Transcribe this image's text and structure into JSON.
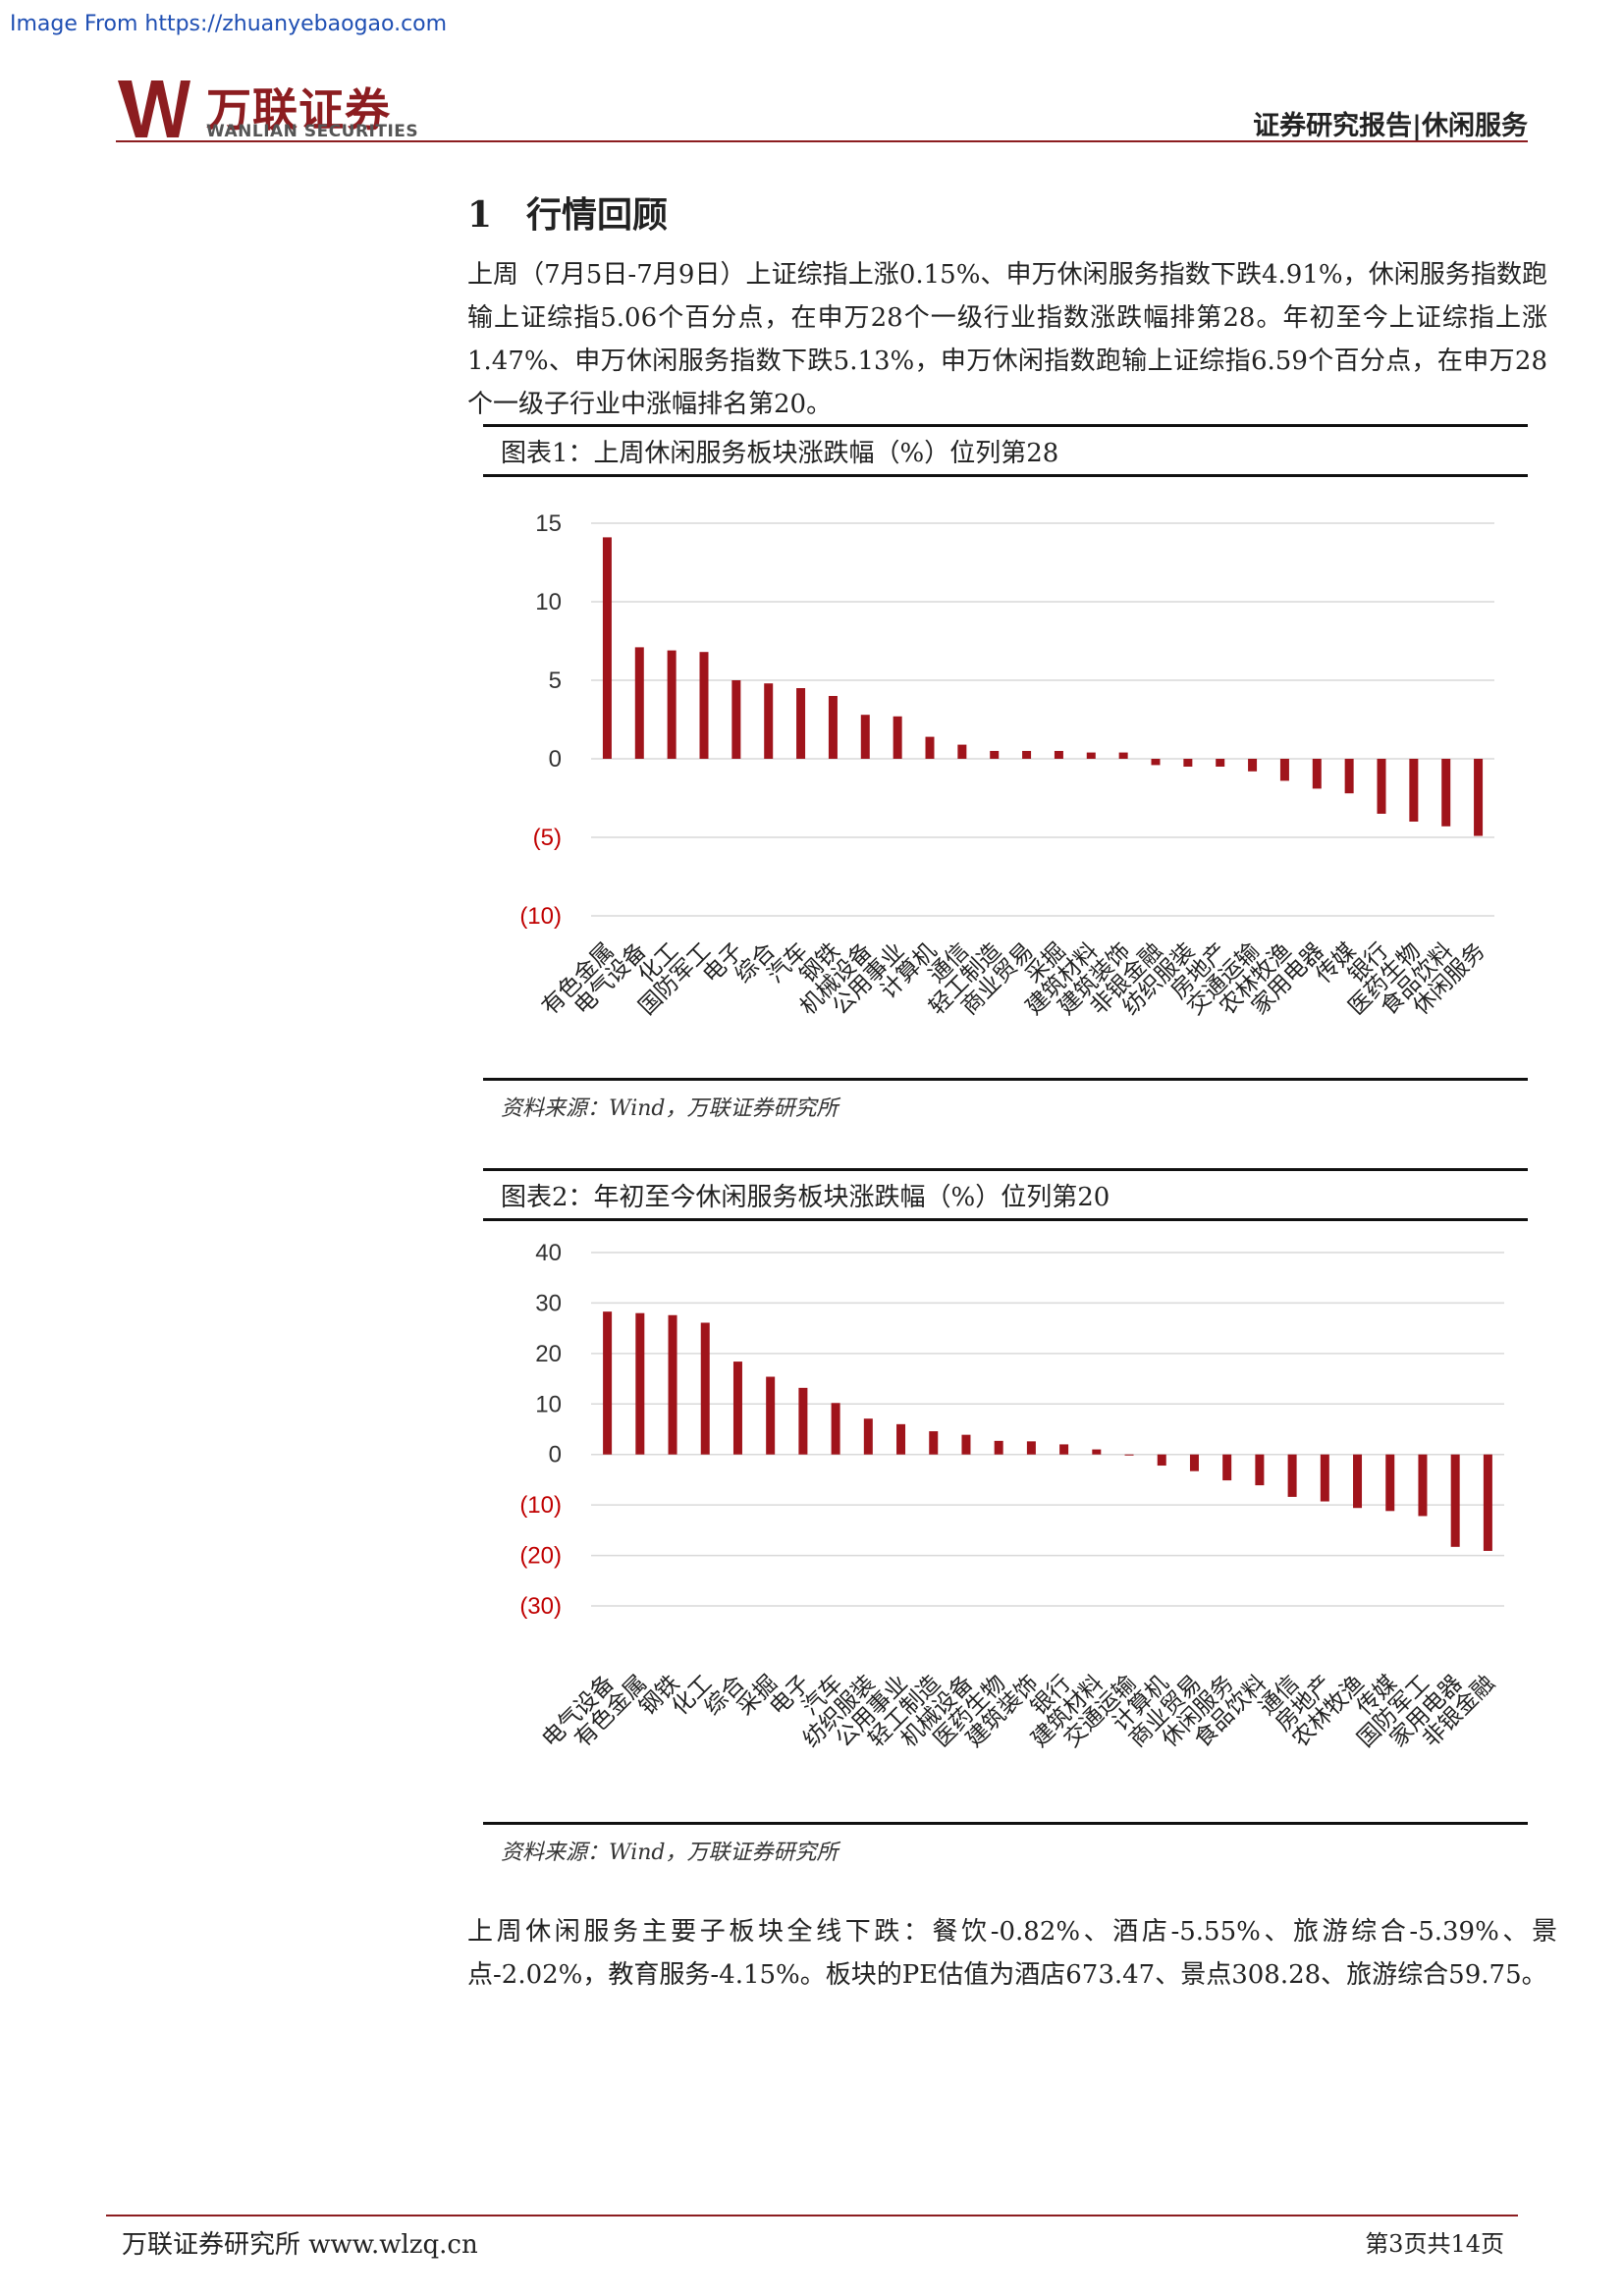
{
  "source_url": "Image From https://zhuanyebaogao.com",
  "header": {
    "logo_cn": "万联证券",
    "logo_en": "WANLIAN SECURITIES",
    "right_title": "证券研究报告|休闲服务"
  },
  "section": {
    "number": "1",
    "title": "行情回顾"
  },
  "paragraph_1": "上周（7月5日-7月9日）上证综指上涨0.15%、申万休闲服务指数下跌4.91%，休闲服务指数跑输上证综指5.06个百分点，在申万28个一级行业指数涨跌幅排第28。年初至今上证综指上涨1.47%、申万休闲服务指数下跌5.13%，申万休闲指数跑输上证综指6.59个百分点，在申万28个一级子行业中涨幅排名第20。",
  "figure_1": {
    "title": "图表1：上周休闲服务板块涨跌幅（%）位列第28",
    "source": "资料来源：Wind，万联证券研究所"
  },
  "figure_2": {
    "title": "图表2：年初至今休闲服务板块涨跌幅（%）位列第20",
    "source": "资料来源：Wind，万联证券研究所"
  },
  "paragraph_2": "上周休闲服务主要子板块全线下跌：餐饮-0.82%、酒店-5.55%、旅游综合-5.39%、景点-2.02%，教育服务-4.15%。板块的PE估值为酒店673.47、景点308.28、旅游综合59.75。",
  "footer": {
    "left": "万联证券研究所 www.wlzq.cn",
    "right": "第3页共14页"
  },
  "colors": {
    "brand": "#8c1d20",
    "bar": "#a0141b",
    "negative_tick": "#c00000"
  },
  "chart_data": [
    {
      "type": "bar",
      "title": "图表1：上周休闲服务板块涨跌幅（%）位列第28",
      "ylim": [
        -10,
        15
      ],
      "yticks": [
        15,
        10,
        5,
        0,
        -5,
        -10
      ],
      "ytick_labels": [
        "15",
        "10",
        "5",
        "0",
        "(5)",
        "(10)"
      ],
      "categories": [
        "有色金属",
        "电气设备",
        "化工",
        "国防军工",
        "电子",
        "综合",
        "汽车",
        "钢铁",
        "机械设备",
        "公用事业",
        "计算机",
        "通信",
        "轻工制造",
        "商业贸易",
        "采掘",
        "建筑材料",
        "建筑装饰",
        "非银金融",
        "纺织服装",
        "房地产",
        "交通运输",
        "农林牧渔",
        "家用电器",
        "传媒",
        "银行",
        "医药生物",
        "食品饮料",
        "休闲服务"
      ],
      "values": [
        14.1,
        7.1,
        6.9,
        6.8,
        5.0,
        4.8,
        4.5,
        4.0,
        2.8,
        2.7,
        1.4,
        0.9,
        0.5,
        0.5,
        0.5,
        0.4,
        0.4,
        -0.4,
        -0.5,
        -0.5,
        -0.8,
        -1.4,
        -1.9,
        -2.2,
        -3.5,
        -4.0,
        -4.3,
        -4.91
      ]
    },
    {
      "type": "bar",
      "title": "图表2：年初至今休闲服务板块涨跌幅（%）位列第20",
      "ylim": [
        -30,
        40
      ],
      "yticks": [
        40,
        30,
        20,
        10,
        0,
        -10,
        -20,
        -30
      ],
      "ytick_labels": [
        "40",
        "30",
        "20",
        "10",
        "0",
        "(10)",
        "(20)",
        "(30)"
      ],
      "categories": [
        "电气设备",
        "有色金属",
        "钢铁",
        "化工",
        "综合",
        "采掘",
        "电子",
        "汽车",
        "纺织服装",
        "公用事业",
        "轻工制造",
        "机械设备",
        "医药生物",
        "建筑装饰",
        "银行",
        "建筑材料",
        "交通运输",
        "计算机",
        "商业贸易",
        "休闲服务",
        "食品饮料",
        "通信",
        "房地产",
        "农林牧渔",
        "传媒",
        "国防军工",
        "家用电器",
        "非银金融"
      ],
      "values": [
        28.3,
        28.0,
        27.6,
        26.1,
        18.4,
        15.4,
        13.2,
        10.2,
        7.1,
        6.0,
        4.6,
        3.9,
        2.7,
        2.6,
        2.0,
        1.0,
        -0.2,
        -2.2,
        -3.3,
        -5.13,
        -6.1,
        -8.4,
        -9.3,
        -10.6,
        -11.2,
        -12.2,
        -18.3,
        -19.1
      ]
    }
  ]
}
